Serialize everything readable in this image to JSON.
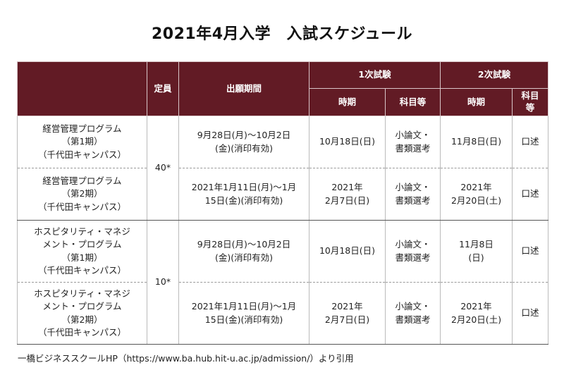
{
  "title": "2021年4月入学　入試スケジュール",
  "table": {
    "headers": {
      "capacity": "定員",
      "application_period": "出願期間",
      "round1": "1次試験",
      "round2": "2次試験",
      "r1_period": "時期",
      "r1_subjects": "科目等",
      "r2_period": "時期",
      "r2_subjects_line1": "科目",
      "r2_subjects_line2": "等"
    },
    "rows": [
      {
        "program": [
          "経営管理プログラム",
          "（第1期）",
          "（千代田キャンパス）"
        ],
        "application": [
          "9月28日(月)〜10月2日",
          "(金)(消印有効)"
        ],
        "r1_period": [
          "10月18日(日)"
        ],
        "r1_subjects": [
          "小論文・",
          "書類選考"
        ],
        "r2_period": [
          "11月8日(日)"
        ],
        "r2_subjects": [
          "口述"
        ]
      },
      {
        "program": [
          "経営管理プログラム",
          "（第2期）",
          "（千代田キャンパス）"
        ],
        "application": [
          "2021年1月11日(月)〜1月",
          "15日(金)(消印有効)"
        ],
        "r1_period": [
          "2021年",
          "2月7日(日)"
        ],
        "r1_subjects": [
          "小論文・",
          "書類選考"
        ],
        "r2_period": [
          "2021年",
          "2月20日(土)"
        ],
        "r2_subjects": [
          "口述"
        ]
      },
      {
        "program": [
          "ホスピタリティ・マネジ",
          "メント・プログラム",
          "（第1期）",
          "（千代田キャンパス）"
        ],
        "application": [
          "9月28日(月)〜10月2日",
          "(金)(消印有効)"
        ],
        "r1_period": [
          "10月18日(日)"
        ],
        "r1_subjects": [
          "小論文・",
          "書類選考"
        ],
        "r2_period": [
          "11月8日",
          "(日)"
        ],
        "r2_subjects": [
          "口述"
        ]
      },
      {
        "program": [
          "ホスピタリティ・マネジ",
          "メント・プログラム",
          "（第2期）",
          "（千代田キャンパス）"
        ],
        "application": [
          "2021年1月11日(月)〜1月",
          "15日(金)(消印有効)"
        ],
        "r1_period": [
          "2021年",
          "2月7日(日)"
        ],
        "r1_subjects": [
          "小論文・",
          "書類選考"
        ],
        "r2_period": [
          "2021年",
          "2月20日(土)"
        ],
        "r2_subjects": [
          "口述"
        ]
      }
    ],
    "capacities": [
      "40*",
      "10*"
    ]
  },
  "footnote": "一橋ビジネススクールHP（https://www.ba.hub.hit-u.ac.jp/admission/）より引用"
}
